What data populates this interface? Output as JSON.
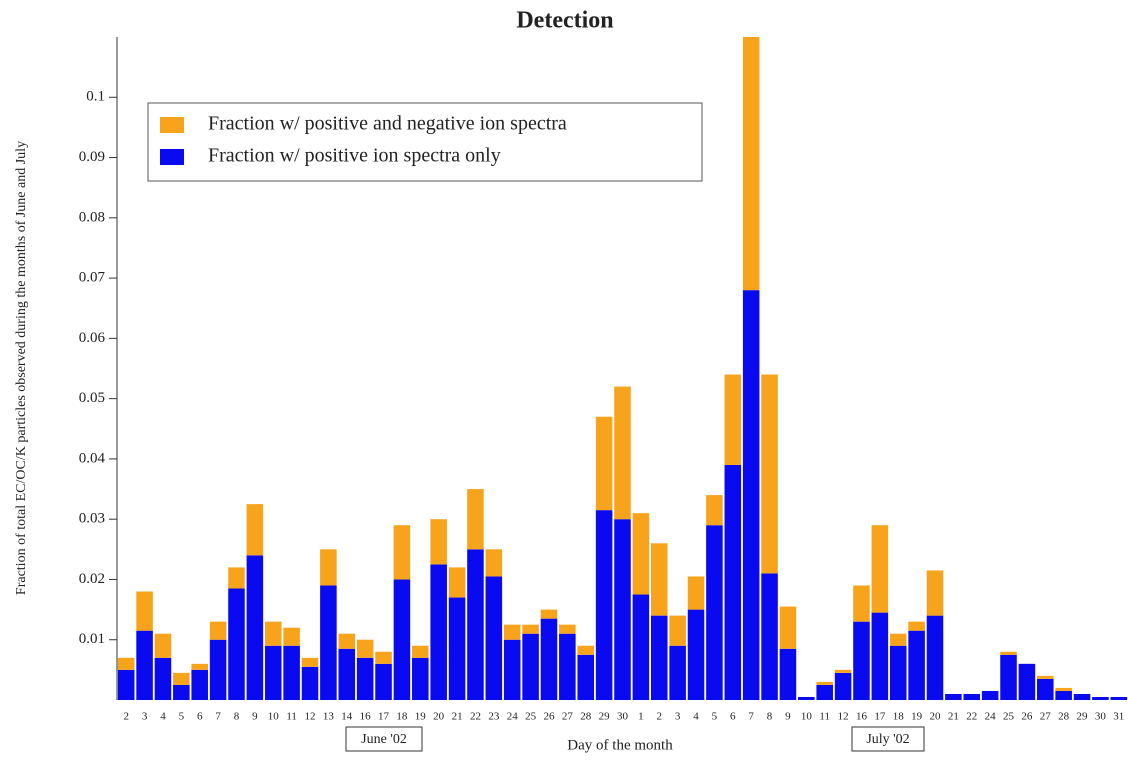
{
  "chart_data": {
    "type": "stacked_bar",
    "title": "Detection",
    "y_label": "Fraction of total EC/OC/K particles observed during the months of June and July",
    "x_label": "Day of the month",
    "period_labels": [
      "June '02",
      "July '02"
    ],
    "categories": [
      "2",
      "3",
      "4",
      "5",
      "6",
      "7",
      "8",
      "9",
      "10",
      "11",
      "12",
      "13",
      "14",
      "16",
      "17",
      "18",
      "19",
      "20",
      "21",
      "22",
      "23",
      "24",
      "25",
      "26",
      "27",
      "28",
      "29",
      "30",
      "1",
      "2",
      "3",
      "4",
      "5",
      "6",
      "7",
      "8",
      "9",
      "10",
      "11",
      "12",
      "16",
      "17",
      "18",
      "19",
      "20",
      "21",
      "22",
      "24",
      "25",
      "26",
      "27",
      "28",
      "29",
      "30",
      "31"
    ],
    "series": [
      {
        "name": "Fraction w/ positive ion spectra only",
        "color": "#0a0af0",
        "values": [
          0.005,
          0.0115,
          0.007,
          0.0025,
          0.005,
          0.01,
          0.0185,
          0.024,
          0.009,
          0.009,
          0.0055,
          0.019,
          0.0085,
          0.007,
          0.006,
          0.02,
          0.007,
          0.0225,
          0.017,
          0.025,
          0.0205,
          0.01,
          0.011,
          0.0135,
          0.011,
          0.0075,
          0.0315,
          0.03,
          0.0175,
          0.014,
          0.009,
          0.015,
          0.029,
          0.039,
          0.068,
          0.021,
          0.0085,
          0.0005,
          0.0025,
          0.0045,
          0.013,
          0.0145,
          0.009,
          0.0115,
          0.014,
          0.001,
          0.001,
          0.0015,
          0.0075,
          0.006,
          0.0035,
          0.0015,
          0.001,
          0.0005,
          0.0005
        ]
      },
      {
        "name": "Fraction w/ positive and negative ion spectra",
        "color": "#f7a41c",
        "values": [
          0.002,
          0.0065,
          0.004,
          0.002,
          0.001,
          0.003,
          0.0035,
          0.0085,
          0.004,
          0.003,
          0.0015,
          0.006,
          0.0025,
          0.003,
          0.002,
          0.009,
          0.002,
          0.0075,
          0.005,
          0.01,
          0.0045,
          0.0025,
          0.0015,
          0.0015,
          0.0015,
          0.0015,
          0.0155,
          0.022,
          0.0135,
          0.012,
          0.005,
          0.0055,
          0.005,
          0.015,
          0.042,
          0.033,
          0.007,
          0,
          0.0005,
          0.0005,
          0.006,
          0.0145,
          0.002,
          0.0015,
          0.0075,
          0,
          0,
          0,
          0.0005,
          0,
          0.0005,
          0.0005,
          0,
          0,
          0
        ]
      }
    ],
    "ylim": [
      0,
      0.11
    ],
    "yticks": [
      0.01,
      0.02,
      0.03,
      0.04,
      0.05,
      0.06,
      0.07,
      0.08,
      0.09,
      0.1
    ]
  }
}
